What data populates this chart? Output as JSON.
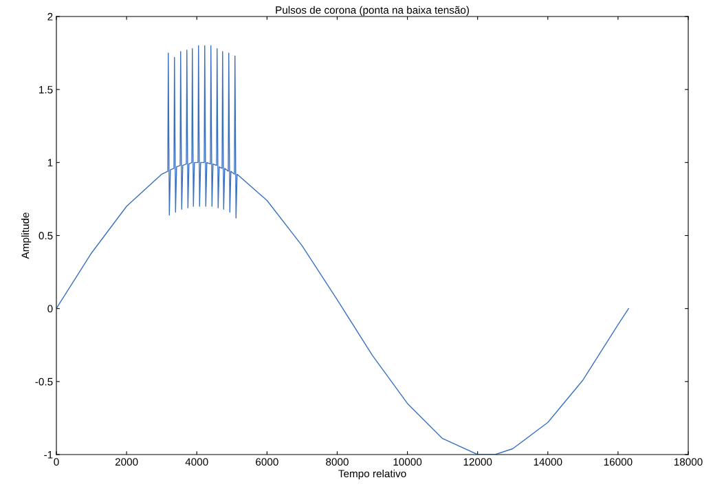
{
  "chart_data": {
    "type": "line",
    "title": "Pulsos de corona (ponta na baixa tensão)",
    "xlabel": "Tempo relativo",
    "ylabel": "Amplitude",
    "xlim": [
      0,
      18000
    ],
    "ylim": [
      -1,
      2
    ],
    "xticks": [
      0,
      2000,
      4000,
      6000,
      8000,
      10000,
      12000,
      14000,
      16000,
      18000
    ],
    "yticks": [
      -1,
      -0.5,
      0,
      0.5,
      1,
      1.5,
      2
    ],
    "grid": false,
    "series": [
      {
        "color": "#3a70c0",
        "x": [
          0,
          1000,
          2000,
          3000,
          3173,
          3188,
          3218,
          3248,
          3349,
          3364,
          3394,
          3424,
          3525,
          3540,
          3570,
          3600,
          3702,
          3717,
          3747,
          3777,
          3858,
          3873,
          3903,
          3933,
          4034,
          4049,
          4079,
          4109,
          4211,
          4226,
          4256,
          4286,
          4387,
          4402,
          4432,
          4462,
          4563,
          4578,
          4608,
          4638,
          4720,
          4735,
          4765,
          4795,
          4896,
          4911,
          4941,
          4971,
          5072,
          5087,
          5117,
          5147,
          6000,
          7000,
          8000,
          9000,
          10000,
          11000,
          12000,
          12500,
          13000,
          14000,
          15000,
          16000,
          16300
        ],
        "values": [
          0,
          0.38,
          0.7,
          0.92,
          0.94,
          1.75,
          0.64,
          0.95,
          0.96,
          1.72,
          0.66,
          0.97,
          0.98,
          1.76,
          0.68,
          0.98,
          0.99,
          1.77,
          0.69,
          0.99,
          1.0,
          1.78,
          0.7,
          1.0,
          1.0,
          1.8,
          0.7,
          1.0,
          1.0,
          1.8,
          0.7,
          1.0,
          0.99,
          1.8,
          0.7,
          0.99,
          0.98,
          1.78,
          0.69,
          0.97,
          0.96,
          1.76,
          0.68,
          0.96,
          0.94,
          1.75,
          0.66,
          0.94,
          0.92,
          1.73,
          0.62,
          0.92,
          0.74,
          0.43,
          0.06,
          -0.32,
          -0.65,
          -0.89,
          -1.0,
          -1.0,
          -0.96,
          -0.78,
          -0.49,
          -0.11,
          0
        ]
      }
    ]
  }
}
